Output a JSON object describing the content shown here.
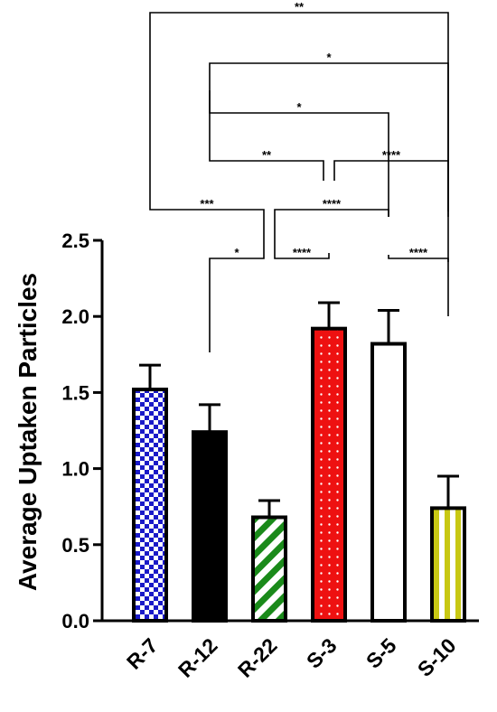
{
  "chart_data": {
    "type": "bar",
    "title": "",
    "xlabel": "",
    "ylabel": "Average Uptaken Particles",
    "ylim": [
      0,
      2.5
    ],
    "yticks": [
      "0.0",
      "0.5",
      "1.0",
      "1.5",
      "2.0",
      "2.5"
    ],
    "categories": [
      "R-7",
      "R-12",
      "R-22",
      "S-3",
      "S-5",
      "S-10"
    ],
    "values": [
      1.52,
      1.24,
      0.68,
      1.92,
      1.82,
      0.74
    ],
    "errors": [
      0.16,
      0.18,
      0.11,
      0.17,
      0.22,
      0.21
    ],
    "fills": [
      {
        "pattern": "checker",
        "color": "#1a1ac8"
      },
      {
        "pattern": "solid",
        "color": "#000000"
      },
      {
        "pattern": "diagonal-stripes",
        "color": "#1a8a1a"
      },
      {
        "pattern": "dots",
        "color": "#ee1111"
      },
      {
        "pattern": "none",
        "color": "#ffffff"
      },
      {
        "pattern": "vertical-stripes",
        "color": "#c8c814"
      }
    ],
    "comparisons": [
      {
        "from": "R-7",
        "to": "S-10",
        "label": "**"
      },
      {
        "from": "R-12",
        "to": "S-10",
        "label": "*"
      },
      {
        "from": "R-12",
        "to": "S-5",
        "label": "*"
      },
      {
        "from": "R-12",
        "to": "S-3",
        "label": "**"
      },
      {
        "from": "S-3",
        "to": "S-10",
        "label": "****"
      },
      {
        "from": "R-7",
        "to": "R-22",
        "label": "***"
      },
      {
        "from": "R-22",
        "to": "S-5",
        "label": "****"
      },
      {
        "from": "R-12",
        "to": "R-22",
        "label": "*"
      },
      {
        "from": "R-22",
        "to": "S-3",
        "label": "****"
      },
      {
        "from": "S-5",
        "to": "S-10",
        "label": "****"
      }
    ]
  }
}
